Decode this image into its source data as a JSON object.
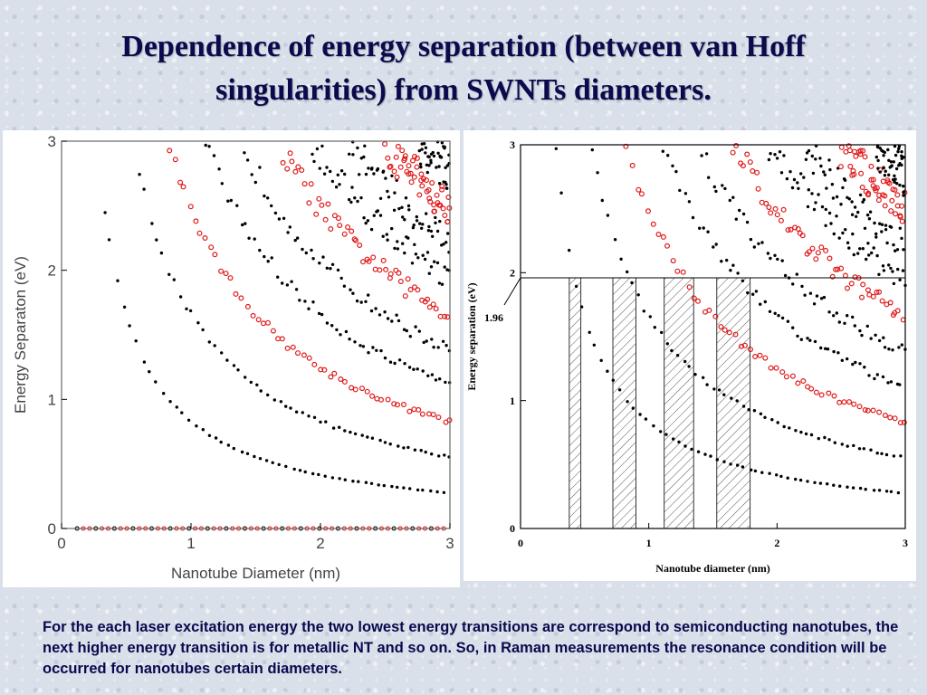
{
  "slide": {
    "title_line1": "Dependence of energy separation (between van Hoff",
    "title_line2": "singularities) from SWNTs diameters.",
    "caption": "For the each laser excitation energy the two lowest energy transitions are correspond to semiconducting nanotubes, the next higher energy transition is for metallic NT and so on. So, in Raman measurements the resonance condition will be occurred for nanotubes certain diameters."
  },
  "chart_data": [
    {
      "type": "scatter",
      "title": "",
      "xlabel": "Nanotube Diameter (nm)",
      "ylabel": "Energy Separaton (eV)",
      "xlim": [
        0,
        3
      ],
      "ylim": [
        0,
        3
      ],
      "xticks": [
        "0",
        "1",
        "2",
        "3"
      ],
      "yticks": [
        "0",
        "1",
        "2",
        "3"
      ],
      "grid": false,
      "colors": {
        "semiconducting": "#000000",
        "metallic": "#e01818"
      },
      "series": [
        {
          "type": "semiconducting",
          "coef": 0.83
        },
        {
          "type": "semiconducting",
          "coef": 1.66
        },
        {
          "type": "metallic",
          "coef": 2.49
        },
        {
          "type": "semiconducting",
          "coef": 3.32
        },
        {
          "type": "semiconducting",
          "coef": 4.15
        },
        {
          "type": "metallic",
          "coef": 4.98
        },
        {
          "type": "semiconducting",
          "coef": 5.81
        },
        {
          "type": "semiconducting",
          "coef": 6.64
        },
        {
          "type": "metallic",
          "coef": 7.47
        },
        {
          "type": "semiconducting",
          "coef": 8.3
        }
      ]
    },
    {
      "type": "scatter",
      "title": "",
      "xlabel": "Nanotube diameter (nm)",
      "ylabel": "Energy separation (eV)",
      "xlim": [
        0,
        3
      ],
      "ylim": [
        0,
        3
      ],
      "xticks": [
        "0",
        "1",
        "2",
        "3"
      ],
      "yticks": [
        "0",
        "1",
        "2",
        "3"
      ],
      "grid": false,
      "annotation_value": "1.96",
      "annotation_line_y": 1.96,
      "hatched_diameter_ranges": [
        [
          0.38,
          0.47
        ],
        [
          0.72,
          0.9
        ],
        [
          1.12,
          1.35
        ],
        [
          1.53,
          1.79
        ]
      ],
      "colors": {
        "semiconducting": "#000000",
        "metallic": "#e01818"
      },
      "series": [
        {
          "type": "semiconducting",
          "coef": 0.83
        },
        {
          "type": "semiconducting",
          "coef": 1.66
        },
        {
          "type": "metallic",
          "coef": 2.49
        },
        {
          "type": "semiconducting",
          "coef": 3.32
        },
        {
          "type": "semiconducting",
          "coef": 4.15
        },
        {
          "type": "metallic",
          "coef": 4.98
        },
        {
          "type": "semiconducting",
          "coef": 5.81
        },
        {
          "type": "semiconducting",
          "coef": 6.64
        },
        {
          "type": "metallic",
          "coef": 7.47
        },
        {
          "type": "semiconducting",
          "coef": 8.3
        }
      ]
    }
  ]
}
